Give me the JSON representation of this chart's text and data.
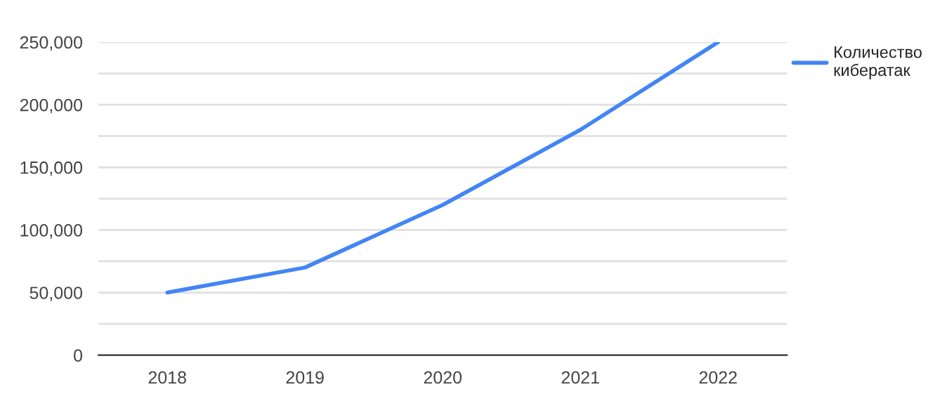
{
  "chart_data": {
    "type": "line",
    "categories": [
      "2018",
      "2019",
      "2020",
      "2021",
      "2022"
    ],
    "series": [
      {
        "name": "Количество\nкибератак",
        "color": "#4285f4",
        "values": [
          50000,
          70000,
          120000,
          180000,
          250000
        ]
      }
    ],
    "ylim": [
      0,
      250000
    ],
    "yticks": [
      {
        "value": 0,
        "label": "0"
      },
      {
        "value": 25000,
        "label": null
      },
      {
        "value": 50000,
        "label": "50,000"
      },
      {
        "value": 75000,
        "label": null
      },
      {
        "value": 100000,
        "label": "100,000"
      },
      {
        "value": 125000,
        "label": null
      },
      {
        "value": 150000,
        "label": "150,000"
      },
      {
        "value": 175000,
        "label": null
      },
      {
        "value": 200000,
        "label": "200,000"
      },
      {
        "value": 225000,
        "label": null
      },
      {
        "value": 250000,
        "label": "250,000"
      }
    ],
    "grid": "y",
    "legend": "right",
    "marker": "none",
    "line_style": "solid"
  }
}
